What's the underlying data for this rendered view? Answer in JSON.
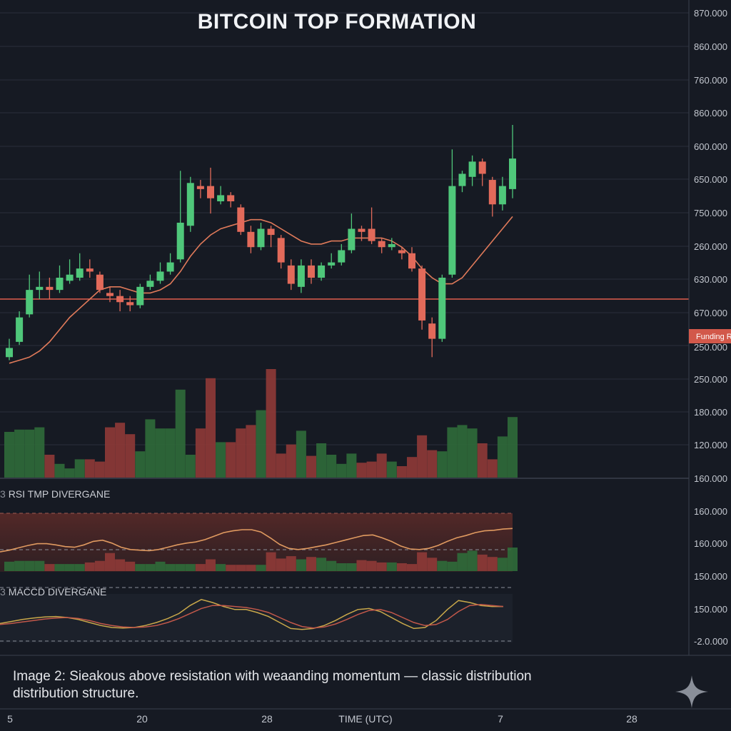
{
  "title": "BITCOIN TOP FORMATION",
  "caption_line1": "Image 2: Sieakous above resistation with weaanding momentum — classic distribution",
  "caption_line2": "distribution structure.",
  "rsi_label": "RSI TMP DIVERGANE",
  "rsi_prefix": "3",
  "macd_label": "MACCD DIVERGANE",
  "macd_prefix": "3",
  "funding_label": "Funding R",
  "colors": {
    "up": "#4fc77a",
    "down": "#e26a5a",
    "ma": "#e07a5a",
    "resistance": "#d2584a",
    "vol_up": "#2f6b3a",
    "vol_down": "#8f3a37",
    "bg": "#161a23",
    "grid": "#2a2f3b"
  },
  "chart_data": {
    "type": "candlestick",
    "title": "BITCOIN TOP FORMATION",
    "xlabel": "TIME (UTC)",
    "x_ticks": [
      "5",
      "20",
      "28",
      "7",
      "28"
    ],
    "y_tick_labels": [
      "870.000",
      "860.000",
      "760.000",
      "860.000",
      "600.000",
      "650.000",
      "750.000",
      "260.000",
      "630.000",
      "670.000",
      "250.000",
      "250.000",
      "180.000",
      "120.000",
      "160.000",
      "160.000",
      "160.000",
      "150.000",
      "150.000",
      "-2.0.000"
    ],
    "ylim": [
      0,
      100
    ],
    "resistance_level": 43,
    "candles": [
      {
        "o": 24,
        "c": 27,
        "h": 30,
        "l": 23
      },
      {
        "o": 29,
        "c": 37,
        "h": 39,
        "l": 28
      },
      {
        "o": 38,
        "c": 46,
        "h": 51,
        "l": 37
      },
      {
        "o": 46,
        "c": 47,
        "h": 52,
        "l": 43
      },
      {
        "o": 47,
        "c": 46,
        "h": 50,
        "l": 43
      },
      {
        "o": 46,
        "c": 50,
        "h": 54,
        "l": 45
      },
      {
        "o": 49,
        "c": 51,
        "h": 56,
        "l": 48
      },
      {
        "o": 50,
        "c": 53,
        "h": 58,
        "l": 49
      },
      {
        "o": 53,
        "c": 52,
        "h": 56,
        "l": 50
      },
      {
        "o": 51,
        "c": 46,
        "h": 52,
        "l": 45
      },
      {
        "o": 45,
        "c": 44,
        "h": 47,
        "l": 42
      },
      {
        "o": 44,
        "c": 42,
        "h": 46,
        "l": 39
      },
      {
        "o": 42,
        "c": 41,
        "h": 44,
        "l": 39
      },
      {
        "o": 41,
        "c": 47,
        "h": 48,
        "l": 40
      },
      {
        "o": 47,
        "c": 49,
        "h": 51,
        "l": 46
      },
      {
        "o": 49,
        "c": 52,
        "h": 55,
        "l": 48
      },
      {
        "o": 52,
        "c": 55,
        "h": 58,
        "l": 51
      },
      {
        "o": 56,
        "c": 68,
        "h": 85,
        "l": 55
      },
      {
        "o": 67,
        "c": 81,
        "h": 83,
        "l": 65
      },
      {
        "o": 80,
        "c": 79,
        "h": 82,
        "l": 76
      },
      {
        "o": 80,
        "c": 76,
        "h": 86,
        "l": 71
      },
      {
        "o": 75,
        "c": 77,
        "h": 80,
        "l": 74
      },
      {
        "o": 77,
        "c": 75,
        "h": 78,
        "l": 73
      },
      {
        "o": 73,
        "c": 65,
        "h": 74,
        "l": 64
      },
      {
        "o": 65,
        "c": 60,
        "h": 67,
        "l": 58
      },
      {
        "o": 60,
        "c": 66,
        "h": 68,
        "l": 59
      },
      {
        "o": 66,
        "c": 64,
        "h": 67,
        "l": 60
      },
      {
        "o": 63,
        "c": 55,
        "h": 64,
        "l": 53
      },
      {
        "o": 54,
        "c": 48,
        "h": 56,
        "l": 46
      },
      {
        "o": 47,
        "c": 54,
        "h": 56,
        "l": 45
      },
      {
        "o": 54,
        "c": 50,
        "h": 56,
        "l": 48
      },
      {
        "o": 50,
        "c": 54,
        "h": 55,
        "l": 49
      },
      {
        "o": 54,
        "c": 55,
        "h": 58,
        "l": 53
      },
      {
        "o": 55,
        "c": 59,
        "h": 61,
        "l": 54
      },
      {
        "o": 59,
        "c": 66,
        "h": 71,
        "l": 58
      },
      {
        "o": 66,
        "c": 65,
        "h": 67,
        "l": 62
      },
      {
        "o": 66,
        "c": 62,
        "h": 73,
        "l": 61
      },
      {
        "o": 62,
        "c": 60,
        "h": 63,
        "l": 58
      },
      {
        "o": 60,
        "c": 61,
        "h": 63,
        "l": 59
      },
      {
        "o": 59,
        "c": 58,
        "h": 60,
        "l": 56
      },
      {
        "o": 58,
        "c": 53,
        "h": 60,
        "l": 52
      },
      {
        "o": 53,
        "c": 36,
        "h": 54,
        "l": 33
      },
      {
        "o": 35,
        "c": 30,
        "h": 37,
        "l": 24
      },
      {
        "o": 30,
        "c": 50,
        "h": 51,
        "l": 29
      },
      {
        "o": 51,
        "c": 80,
        "h": 92,
        "l": 50
      },
      {
        "o": 80,
        "c": 84,
        "h": 85,
        "l": 78
      },
      {
        "o": 83,
        "c": 88,
        "h": 90,
        "l": 80
      },
      {
        "o": 88,
        "c": 84,
        "h": 89,
        "l": 80
      },
      {
        "o": 82,
        "c": 74,
        "h": 83,
        "l": 70
      },
      {
        "o": 74,
        "c": 80,
        "h": 83,
        "l": 72
      },
      {
        "o": 79,
        "c": 89,
        "h": 100,
        "l": 76
      }
    ],
    "volume": [
      40,
      42,
      42,
      44,
      20,
      12,
      8,
      16,
      16,
      14,
      44,
      48,
      38,
      23,
      51,
      43,
      43,
      77,
      20,
      43,
      87,
      31,
      31,
      43,
      46,
      59,
      95,
      21,
      29,
      41,
      19,
      30,
      20,
      12,
      21,
      13,
      14,
      21,
      14,
      10,
      18,
      37,
      24,
      23,
      44,
      46,
      43,
      30,
      16,
      36,
      53
    ],
    "moving_average": [
      22,
      23,
      24,
      26,
      29,
      33,
      37,
      40,
      43,
      46,
      47,
      47,
      46,
      45,
      45,
      46,
      48,
      52,
      57,
      61,
      64,
      66,
      67,
      68,
      69,
      69,
      68,
      66,
      64,
      62,
      61,
      61,
      62,
      62,
      63,
      63,
      63,
      63,
      62,
      60,
      57,
      53,
      50,
      48,
      48,
      50,
      54,
      58,
      62,
      66,
      70
    ],
    "rsi_volume": [
      24,
      26,
      26,
      26,
      18,
      18,
      18,
      18,
      22,
      26,
      46,
      30,
      24,
      18,
      18,
      24,
      18,
      18,
      18,
      18,
      30,
      18,
      16,
      16,
      16,
      16,
      48,
      32,
      38,
      30,
      36,
      34,
      26,
      20,
      20,
      28,
      26,
      22,
      22,
      20,
      18,
      48,
      34,
      26,
      24,
      46,
      52,
      42,
      36,
      34,
      60
    ],
    "rsi_line": [
      34,
      37,
      41,
      45,
      48,
      48,
      46,
      43,
      42,
      46,
      52,
      54,
      49,
      42,
      38,
      37,
      36,
      38,
      42,
      46,
      49,
      51,
      55,
      61,
      67,
      70,
      72,
      72,
      68,
      58,
      47,
      40,
      38,
      40,
      43,
      46,
      50,
      54,
      58,
      62,
      63,
      58,
      52,
      44,
      39,
      38,
      40,
      45,
      52,
      58,
      62,
      67,
      70,
      71,
      73,
      74
    ],
    "macd_line_1": [
      38,
      42,
      46,
      49,
      51,
      52,
      50,
      46,
      40,
      34,
      30,
      29,
      30,
      34,
      40,
      48,
      58,
      74,
      86,
      80,
      72,
      66,
      66,
      60,
      52,
      40,
      28,
      26,
      28,
      34,
      44,
      56,
      66,
      68,
      62,
      50,
      38,
      28,
      30,
      44,
      66,
      84,
      80,
      74,
      72,
      72
    ],
    "macd_line_2": [
      36,
      38,
      41,
      44,
      47,
      49,
      50,
      48,
      44,
      38,
      34,
      31,
      30,
      31,
      34,
      40,
      48,
      58,
      68,
      74,
      74,
      72,
      70,
      66,
      60,
      50,
      40,
      32,
      29,
      31,
      37,
      46,
      56,
      64,
      66,
      60,
      50,
      40,
      34,
      36,
      46,
      62,
      74,
      76,
      74,
      72
    ]
  }
}
